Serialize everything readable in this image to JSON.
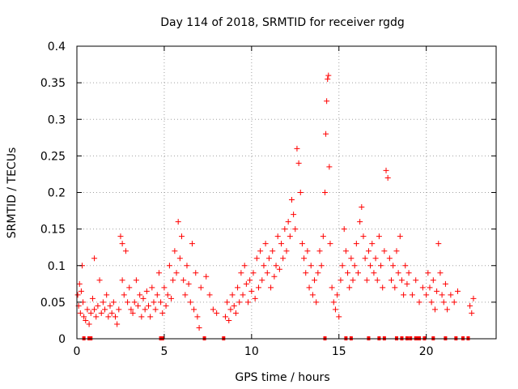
{
  "chart_data": {
    "type": "scatter",
    "title": "Day 114 of 2018, SRMTID for receiver rgdg",
    "xlabel": "GPS time / hours",
    "ylabel": "SRMTID / TECUs",
    "xlim": [
      0,
      24
    ],
    "ylim": [
      0,
      0.4
    ],
    "xticks": [
      0,
      5,
      10,
      15,
      20
    ],
    "xtick_labels": [
      "0",
      "5",
      "10",
      "15",
      "20"
    ],
    "yticks": [
      0,
      0.05,
      0.1,
      0.15,
      0.2,
      0.25,
      0.3,
      0.35,
      0.4
    ],
    "ytick_labels": [
      "0",
      "0.05",
      "0.1",
      "0.15",
      "0.2",
      "0.25",
      "0.3",
      "0.35",
      "0.4"
    ],
    "grid": true,
    "marker": "+",
    "color": "#ff0000",
    "series": [
      {
        "name": "SRMTID",
        "points": [
          [
            0.05,
            0.06
          ],
          [
            0.1,
            0.045
          ],
          [
            0.15,
            0.075
          ],
          [
            0.2,
            0.035
          ],
          [
            0.25,
            0.065
          ],
          [
            0.3,
            0.1
          ],
          [
            0.35,
            0.05
          ],
          [
            0.4,
            0.03
          ],
          [
            0.5,
            0.025
          ],
          [
            0.6,
            0.04
          ],
          [
            0.7,
            0.02
          ],
          [
            0.8,
            0.035
          ],
          [
            0.9,
            0.055
          ],
          [
            1.0,
            0.04
          ],
          [
            1.0,
            0.11
          ],
          [
            1.1,
            0.03
          ],
          [
            1.2,
            0.045
          ],
          [
            1.3,
            0.08
          ],
          [
            1.4,
            0.035
          ],
          [
            1.5,
            0.05
          ],
          [
            1.6,
            0.04
          ],
          [
            1.7,
            0.06
          ],
          [
            1.8,
            0.03
          ],
          [
            1.9,
            0.045
          ],
          [
            2.0,
            0.035
          ],
          [
            2.1,
            0.05
          ],
          [
            2.2,
            0.03
          ],
          [
            2.3,
            0.02
          ],
          [
            2.4,
            0.04
          ],
          [
            2.5,
            0.14
          ],
          [
            2.6,
            0.13
          ],
          [
            2.6,
            0.08
          ],
          [
            2.7,
            0.06
          ],
          [
            2.8,
            0.12
          ],
          [
            2.9,
            0.05
          ],
          [
            3.0,
            0.07
          ],
          [
            3.1,
            0.04
          ],
          [
            3.2,
            0.035
          ],
          [
            3.3,
            0.05
          ],
          [
            3.4,
            0.08
          ],
          [
            3.5,
            0.045
          ],
          [
            3.6,
            0.06
          ],
          [
            3.7,
            0.03
          ],
          [
            3.8,
            0.055
          ],
          [
            3.9,
            0.04
          ],
          [
            4.0,
            0.065
          ],
          [
            4.1,
            0.045
          ],
          [
            4.2,
            0.03
          ],
          [
            4.3,
            0.07
          ],
          [
            4.4,
            0.05
          ],
          [
            4.5,
            0.04
          ],
          [
            4.6,
            0.06
          ],
          [
            4.7,
            0.09
          ],
          [
            4.8,
            0.05
          ],
          [
            4.9,
            0.035
          ],
          [
            5.0,
            0.07
          ],
          [
            5.1,
            0.045
          ],
          [
            5.2,
            0.06
          ],
          [
            5.3,
            0.1
          ],
          [
            5.4,
            0.055
          ],
          [
            5.5,
            0.08
          ],
          [
            5.6,
            0.12
          ],
          [
            5.7,
            0.09
          ],
          [
            5.8,
            0.16
          ],
          [
            5.9,
            0.11
          ],
          [
            6.0,
            0.14
          ],
          [
            6.1,
            0.08
          ],
          [
            6.2,
            0.06
          ],
          [
            6.3,
            0.1
          ],
          [
            6.4,
            0.075
          ],
          [
            6.5,
            0.05
          ],
          [
            6.6,
            0.13
          ],
          [
            6.7,
            0.04
          ],
          [
            6.8,
            0.09
          ],
          [
            6.9,
            0.03
          ],
          [
            7.0,
            0.015
          ],
          [
            7.1,
            0.07
          ],
          [
            7.4,
            0.085
          ],
          [
            7.6,
            0.06
          ],
          [
            7.8,
            0.04
          ],
          [
            8.0,
            0.035
          ],
          [
            8.5,
            0.03
          ],
          [
            8.6,
            0.05
          ],
          [
            8.7,
            0.025
          ],
          [
            8.8,
            0.04
          ],
          [
            8.9,
            0.06
          ],
          [
            9.0,
            0.045
          ],
          [
            9.1,
            0.035
          ],
          [
            9.2,
            0.07
          ],
          [
            9.3,
            0.05
          ],
          [
            9.4,
            0.09
          ],
          [
            9.5,
            0.06
          ],
          [
            9.6,
            0.1
          ],
          [
            9.7,
            0.075
          ],
          [
            9.8,
            0.05
          ],
          [
            9.9,
            0.08
          ],
          [
            10.0,
            0.065
          ],
          [
            10.1,
            0.09
          ],
          [
            10.2,
            0.055
          ],
          [
            10.3,
            0.11
          ],
          [
            10.4,
            0.07
          ],
          [
            10.5,
            0.12
          ],
          [
            10.6,
            0.08
          ],
          [
            10.7,
            0.1
          ],
          [
            10.8,
            0.13
          ],
          [
            10.9,
            0.09
          ],
          [
            11.0,
            0.11
          ],
          [
            11.1,
            0.07
          ],
          [
            11.2,
            0.12
          ],
          [
            11.3,
            0.085
          ],
          [
            11.4,
            0.1
          ],
          [
            11.5,
            0.14
          ],
          [
            11.6,
            0.095
          ],
          [
            11.7,
            0.13
          ],
          [
            11.8,
            0.11
          ],
          [
            11.9,
            0.15
          ],
          [
            12.0,
            0.12
          ],
          [
            12.1,
            0.16
          ],
          [
            12.2,
            0.14
          ],
          [
            12.3,
            0.19
          ],
          [
            12.4,
            0.17
          ],
          [
            12.5,
            0.15
          ],
          [
            12.6,
            0.26
          ],
          [
            12.7,
            0.24
          ],
          [
            12.8,
            0.2
          ],
          [
            12.9,
            0.13
          ],
          [
            13.0,
            0.11
          ],
          [
            13.1,
            0.09
          ],
          [
            13.2,
            0.12
          ],
          [
            13.3,
            0.07
          ],
          [
            13.4,
            0.1
          ],
          [
            13.5,
            0.06
          ],
          [
            13.6,
            0.08
          ],
          [
            13.7,
            0.05
          ],
          [
            13.8,
            0.09
          ],
          [
            13.9,
            0.12
          ],
          [
            14.0,
            0.1
          ],
          [
            14.1,
            0.14
          ],
          [
            14.2,
            0.2
          ],
          [
            14.25,
            0.28
          ],
          [
            14.3,
            0.325
          ],
          [
            14.35,
            0.355
          ],
          [
            14.4,
            0.36
          ],
          [
            14.45,
            0.235
          ],
          [
            14.5,
            0.13
          ],
          [
            14.6,
            0.07
          ],
          [
            14.7,
            0.05
          ],
          [
            14.8,
            0.04
          ],
          [
            14.9,
            0.06
          ],
          [
            15.0,
            0.03
          ],
          [
            15.1,
            0.08
          ],
          [
            15.2,
            0.1
          ],
          [
            15.3,
            0.15
          ],
          [
            15.4,
            0.12
          ],
          [
            15.5,
            0.09
          ],
          [
            15.6,
            0.07
          ],
          [
            15.7,
            0.11
          ],
          [
            15.8,
            0.08
          ],
          [
            15.9,
            0.1
          ],
          [
            16.0,
            0.13
          ],
          [
            16.1,
            0.09
          ],
          [
            16.2,
            0.16
          ],
          [
            16.3,
            0.18
          ],
          [
            16.4,
            0.14
          ],
          [
            16.5,
            0.11
          ],
          [
            16.6,
            0.08
          ],
          [
            16.7,
            0.12
          ],
          [
            16.8,
            0.1
          ],
          [
            16.9,
            0.13
          ],
          [
            17.0,
            0.09
          ],
          [
            17.1,
            0.11
          ],
          [
            17.2,
            0.08
          ],
          [
            17.3,
            0.14
          ],
          [
            17.4,
            0.1
          ],
          [
            17.5,
            0.07
          ],
          [
            17.6,
            0.12
          ],
          [
            17.7,
            0.23
          ],
          [
            17.8,
            0.22
          ],
          [
            17.9,
            0.11
          ],
          [
            18.0,
            0.08
          ],
          [
            18.1,
            0.1
          ],
          [
            18.2,
            0.07
          ],
          [
            18.3,
            0.12
          ],
          [
            18.4,
            0.09
          ],
          [
            18.5,
            0.14
          ],
          [
            18.6,
            0.08
          ],
          [
            18.7,
            0.06
          ],
          [
            18.8,
            0.1
          ],
          [
            18.9,
            0.075
          ],
          [
            19.0,
            0.09
          ],
          [
            19.2,
            0.06
          ],
          [
            19.4,
            0.08
          ],
          [
            19.6,
            0.05
          ],
          [
            19.8,
            0.07
          ],
          [
            20.0,
            0.06
          ],
          [
            20.1,
            0.09
          ],
          [
            20.2,
            0.07
          ],
          [
            20.3,
            0.05
          ],
          [
            20.4,
            0.08
          ],
          [
            20.5,
            0.04
          ],
          [
            20.6,
            0.065
          ],
          [
            20.7,
            0.13
          ],
          [
            20.8,
            0.09
          ],
          [
            20.9,
            0.06
          ],
          [
            21.0,
            0.05
          ],
          [
            21.1,
            0.075
          ],
          [
            21.2,
            0.04
          ],
          [
            21.4,
            0.06
          ],
          [
            21.6,
            0.05
          ],
          [
            21.8,
            0.065
          ],
          [
            22.5,
            0.045
          ],
          [
            22.6,
            0.035
          ],
          [
            22.7,
            0.055
          ]
        ]
      }
    ],
    "zero_markers_x": [
      0.4,
      0.7,
      0.8,
      4.8,
      4.9,
      7.3,
      8.4,
      14.2,
      15.4,
      15.7,
      16.7,
      17.3,
      17.6,
      18.3,
      18.6,
      18.9,
      19.1,
      19.4,
      19.5,
      19.6,
      19.9,
      20.4,
      21.1,
      21.7,
      22.1,
      22.4
    ]
  }
}
